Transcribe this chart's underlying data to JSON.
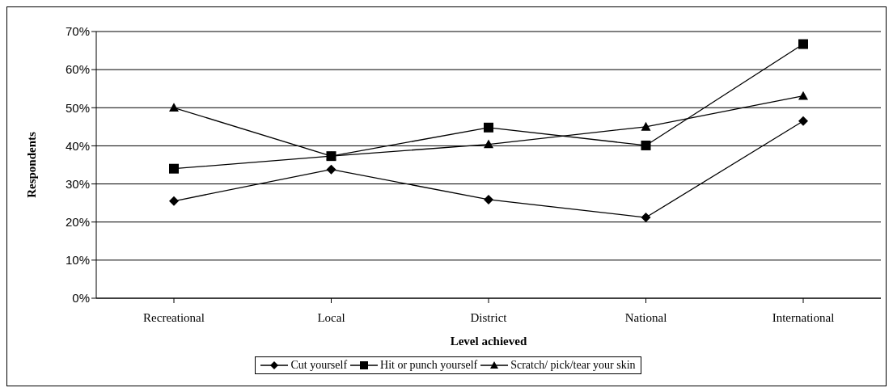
{
  "chart_data": {
    "type": "line",
    "xlabel": "Level achieved",
    "ylabel": "Respondents",
    "categories": [
      "Recreational",
      "Local",
      "District",
      "National",
      "International"
    ],
    "series": [
      {
        "name": "Cut yourself",
        "color": "#000000",
        "marker": "diamond",
        "values": [
          25.5,
          33.8,
          25.9,
          21.2,
          46.5
        ]
      },
      {
        "name": "Hit or punch yourself",
        "color": "#000000",
        "marker": "square",
        "values": [
          34,
          37.3,
          44.8,
          40.1,
          66.7
        ]
      },
      {
        "name": "Scratch/ pick/tear your skin",
        "color": "#000000",
        "marker": "triangle",
        "values": [
          50,
          37.3,
          40.4,
          45,
          53.1
        ]
      }
    ],
    "ylim": [
      0,
      70
    ],
    "yticks": [
      {
        "value": 0,
        "label": "0%"
      },
      {
        "value": 10,
        "label": "10%"
      },
      {
        "value": 20,
        "label": "20%"
      },
      {
        "value": 30,
        "label": "30%"
      },
      {
        "value": 40,
        "label": "40%"
      },
      {
        "value": 50,
        "label": "50%"
      },
      {
        "value": 60,
        "label": "60%"
      },
      {
        "value": 70,
        "label": "70%"
      }
    ],
    "grid": "y",
    "legend": "bottom",
    "line_style": "solid"
  }
}
